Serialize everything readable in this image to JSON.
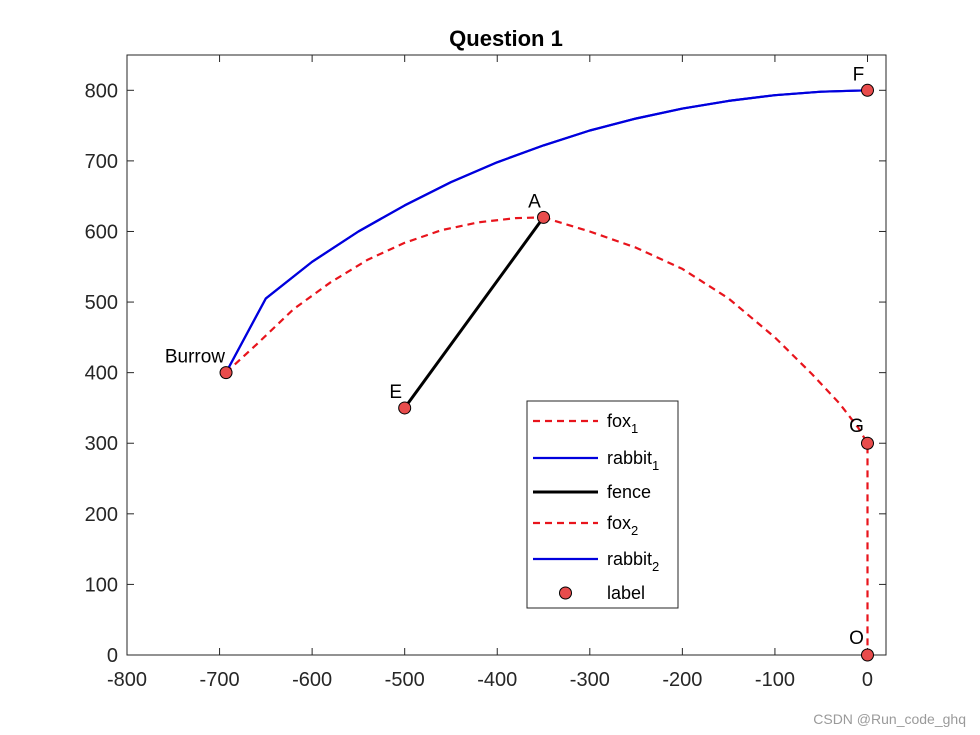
{
  "chart_data": {
    "type": "line",
    "title": "Question 1",
    "xlim": [
      -800,
      20
    ],
    "ylim": [
      0,
      850
    ],
    "xticks": [
      -800,
      -700,
      -600,
      -500,
      -400,
      -300,
      -200,
      -100,
      0
    ],
    "yticks": [
      0,
      100,
      200,
      300,
      400,
      500,
      600,
      700,
      800
    ],
    "grid": false,
    "legend_position": "inside, lower middle-right",
    "series": [
      {
        "name": "fox",
        "subscript": "1",
        "color": "#e8141c",
        "style": "dashed",
        "points": [
          [
            -693,
            400
          ],
          [
            -660,
            440
          ],
          [
            -620,
            490
          ],
          [
            -580,
            528
          ],
          [
            -540,
            560
          ],
          [
            -500,
            584
          ],
          [
            -460,
            602
          ],
          [
            -420,
            613
          ],
          [
            -380,
            619
          ],
          [
            -350,
            620
          ]
        ]
      },
      {
        "name": "rabbit",
        "subscript": "1",
        "color": "#0000dd",
        "style": "solid",
        "points": [
          [
            0,
            800
          ],
          [
            -50,
            798
          ],
          [
            -100,
            793
          ],
          [
            -150,
            785
          ],
          [
            -200,
            774
          ],
          [
            -250,
            760
          ],
          [
            -300,
            743
          ],
          [
            -350,
            722
          ],
          [
            -400,
            698
          ],
          [
            -450,
            670
          ],
          [
            -500,
            637
          ],
          [
            -550,
            600
          ],
          [
            -600,
            557
          ],
          [
            -650,
            505
          ],
          [
            -693,
            400
          ]
        ]
      },
      {
        "name": "fence",
        "subscript": "",
        "color": "#000000",
        "style": "solid",
        "points": [
          [
            -500,
            350
          ],
          [
            -350,
            620
          ]
        ]
      },
      {
        "name": "fox",
        "subscript": "2",
        "color": "#e8141c",
        "style": "dashed",
        "points": [
          [
            -350,
            620
          ],
          [
            -300,
            600
          ],
          [
            -250,
            577
          ],
          [
            -200,
            547
          ],
          [
            -150,
            505
          ],
          [
            -100,
            450
          ],
          [
            -60,
            398
          ],
          [
            -30,
            356
          ],
          [
            -10,
            322
          ],
          [
            0,
            300
          ],
          [
            0,
            200
          ],
          [
            0,
            100
          ],
          [
            0,
            0
          ]
        ]
      },
      {
        "name": "rabbit",
        "subscript": "2",
        "color": "#0000dd",
        "style": "solid",
        "points": [
          [
            0,
            800
          ],
          [
            -50,
            798
          ],
          [
            -100,
            793
          ],
          [
            -150,
            785
          ],
          [
            -200,
            774
          ],
          [
            -250,
            760
          ],
          [
            -300,
            743
          ],
          [
            -350,
            722
          ],
          [
            -400,
            698
          ],
          [
            -450,
            670
          ],
          [
            -500,
            637
          ],
          [
            -550,
            600
          ],
          [
            -600,
            557
          ],
          [
            -650,
            505
          ],
          [
            -693,
            400
          ]
        ]
      }
    ],
    "labels_series": {
      "name": "label",
      "color": "#e84c4c",
      "points": [
        {
          "label": "F",
          "x": 0,
          "y": 800
        },
        {
          "label": "A",
          "x": -350,
          "y": 620
        },
        {
          "label": "Burrow",
          "x": -693,
          "y": 400
        },
        {
          "label": "E",
          "x": -500,
          "y": 350
        },
        {
          "label": "G",
          "x": 0,
          "y": 300
        },
        {
          "label": "O",
          "x": 0,
          "y": 0
        }
      ]
    }
  },
  "watermark": "CSDN @Run_code_ghq"
}
